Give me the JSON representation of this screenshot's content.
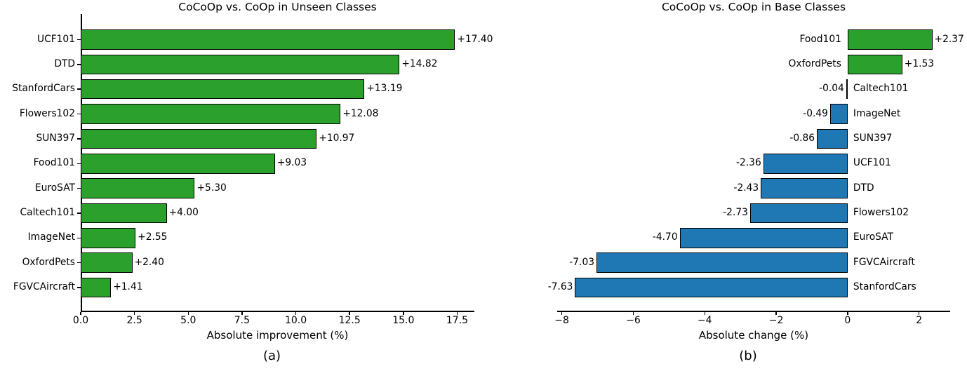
{
  "figure": {
    "background": "#ffffff",
    "text_color": "#000000"
  },
  "chart_data": [
    {
      "type": "bar",
      "orientation": "horizontal",
      "title": "CoCoOp vs. CoOp in Unseen Classes",
      "xlabel": "Absolute improvement (%)",
      "caption": "(a)",
      "grid": false,
      "legend": null,
      "categories": [
        "UCF101",
        "DTD",
        "StanfordCars",
        "Flowers102",
        "SUN397",
        "Food101",
        "EuroSAT",
        "Caltech101",
        "ImageNet",
        "OxfordPets",
        "FGVCAircraft"
      ],
      "values": [
        17.4,
        14.82,
        13.19,
        12.08,
        10.97,
        9.03,
        5.3,
        4.0,
        2.55,
        2.4,
        1.41
      ],
      "bar_labels": [
        "+17.40",
        "+14.82",
        "+13.19",
        "+12.08",
        "+10.97",
        "+9.03",
        "+5.30",
        "+4.00",
        "+2.55",
        "+2.40",
        "+1.41"
      ],
      "xlim": [
        0,
        18.3
      ],
      "xticks": [
        0.0,
        2.5,
        5.0,
        7.5,
        10.0,
        12.5,
        15.0,
        17.5
      ],
      "xtick_labels": [
        "0.0",
        "2.5",
        "5.0",
        "7.5",
        "10.0",
        "12.5",
        "15.0",
        "17.5"
      ],
      "colors": {
        "positive": "#2ca02c",
        "negative": "#1f77b4"
      }
    },
    {
      "type": "bar",
      "orientation": "horizontal",
      "title": "CoCoOp vs. CoOp in Base Classes",
      "xlabel": "Absolute change (%)",
      "caption": "(b)",
      "grid": false,
      "legend": null,
      "categories": [
        "Food101",
        "OxfordPets",
        "Caltech101",
        "ImageNet",
        "SUN397",
        "UCF101",
        "DTD",
        "Flowers102",
        "EuroSAT",
        "FGVCAircraft",
        "StanfordCars"
      ],
      "values": [
        2.37,
        1.53,
        -0.04,
        -0.49,
        -0.86,
        -2.36,
        -2.43,
        -2.73,
        -4.7,
        -7.03,
        -7.63
      ],
      "bar_labels": [
        "+2.37",
        "+1.53",
        "-0.04",
        "-0.49",
        "-0.86",
        "-2.36",
        "-2.43",
        "-2.73",
        "-4.70",
        "-7.03",
        "-7.63"
      ],
      "xlim": [
        -8.13,
        2.87
      ],
      "xticks": [
        -8,
        -6,
        -4,
        -2,
        0,
        2
      ],
      "xtick_labels": [
        "−8",
        "−6",
        "−4",
        "−2",
        "0",
        "2"
      ],
      "colors": {
        "positive": "#2ca02c",
        "negative": "#1f77b4"
      }
    }
  ]
}
